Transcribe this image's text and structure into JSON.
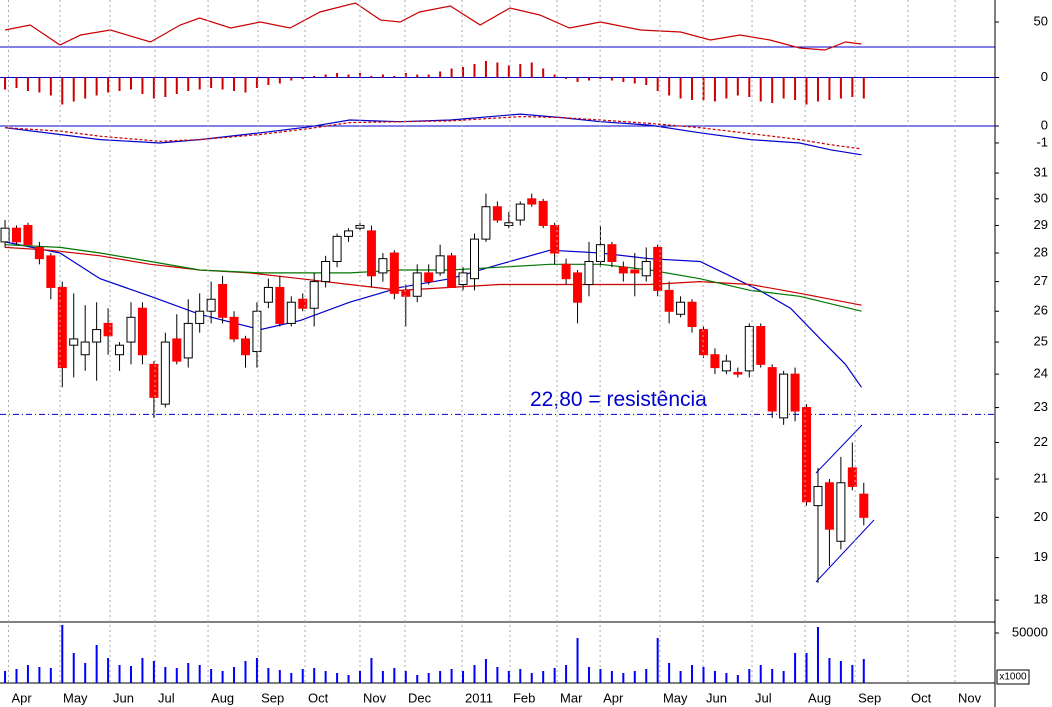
{
  "chart_data": [
    {
      "type": "line",
      "xlim": [
        -0.44,
        86.46
      ],
      "ylim": [
        25,
        72
      ],
      "yticks": [
        50
      ],
      "series": [
        {
          "color": "#cc0000",
          "x": [
            0,
            2.2,
            4.8,
            6.6,
            9.2,
            12.7,
            15.3,
            17.0,
            19.7,
            22.3,
            24.9,
            27.5,
            30.6,
            32.8,
            34.5,
            36.2,
            38.9,
            41.5,
            44.1,
            46.7,
            49.3,
            52.0,
            55.5,
            59.0,
            61.6,
            64.2,
            66.8,
            69.4,
            71.6,
            73.4,
            74.8
          ],
          "values": [
            42,
            47,
            27,
            37,
            42,
            30,
            47,
            54,
            44,
            50,
            44,
            60,
            69,
            52,
            50,
            60,
            66,
            47,
            64,
            57,
            44,
            50,
            42,
            40,
            32,
            37,
            32,
            24,
            22,
            30,
            28
          ]
        }
      ]
    },
    {
      "type": "bar",
      "xlim": [
        -0.44,
        86.46
      ],
      "ylim": [
        -25,
        15
      ],
      "yticks": [
        0
      ],
      "color": "#cc0000",
      "zero_color": "#0000cc",
      "values": [
        -8,
        -7,
        -9,
        -10,
        -12,
        -18,
        -16,
        -14,
        -12,
        -10,
        -9,
        -8,
        -11,
        -14,
        -13,
        -11,
        -9,
        -8,
        -7,
        -8,
        -9,
        -10,
        -7,
        -5,
        -4,
        -2,
        -1,
        1,
        2,
        3,
        2,
        3,
        1,
        2,
        1,
        3,
        2,
        2,
        4,
        6,
        7,
        9,
        11,
        10,
        8,
        9,
        10,
        6,
        2,
        -1,
        -3,
        -2,
        -1,
        -2,
        -3,
        -4,
        -5,
        -9,
        -12,
        -14,
        -15,
        -15,
        -16,
        -14,
        -12,
        -13,
        -16,
        -17,
        -14,
        -15,
        -18,
        -16,
        -15,
        -14,
        -13,
        -14
      ]
    },
    {
      "type": "line",
      "xlim": [
        -0.44,
        86.46
      ],
      "ylim": [
        -2.18,
        0.94
      ],
      "yticks": [
        0,
        -1
      ],
      "zero_color": "#0000cc",
      "series": [
        {
          "color": "#0000cc",
          "style": "solid",
          "x": [
            0,
            4.8,
            8.3,
            13.5,
            17.0,
            22.3,
            26.6,
            30.1,
            34.5,
            38.9,
            45.0,
            48.5,
            52.0,
            56.3,
            60.7,
            65.1,
            69.4,
            72.1,
            74.8
          ],
          "values": [
            -0.1,
            -0.5,
            -0.8,
            -1.0,
            -0.8,
            -0.4,
            -0.05,
            0.35,
            0.25,
            0.35,
            0.7,
            0.5,
            0.25,
            0.05,
            -0.4,
            -0.8,
            -1.0,
            -1.4,
            -1.7
          ]
        },
        {
          "color": "#cc0000",
          "style": "dashed",
          "x": [
            0,
            4.8,
            8.3,
            13.5,
            17.0,
            22.3,
            26.6,
            30.1,
            34.5,
            38.9,
            45.0,
            48.5,
            52.0,
            56.3,
            60.7,
            65.1,
            69.4,
            72.1,
            74.8
          ],
          "values": [
            -0.1,
            -0.3,
            -0.6,
            -0.9,
            -0.8,
            -0.5,
            -0.15,
            0.2,
            0.25,
            0.3,
            0.55,
            0.5,
            0.35,
            0.15,
            -0.1,
            -0.45,
            -0.8,
            -1.1,
            -1.35
          ]
        }
      ]
    },
    {
      "type": "candlestick",
      "xlim": [
        -0.44,
        86.46
      ],
      "ylim": [
        17.55,
        31.4
      ],
      "log_scale": true,
      "yticks": [
        18,
        19,
        20,
        21,
        22,
        23,
        24,
        25,
        26,
        27,
        28,
        29,
        30,
        31
      ],
      "up_color": "#ffffff",
      "down_color": "#ff0000",
      "open": [
        28.4,
        28.9,
        29.0,
        28.2,
        27.9,
        26.8,
        24.9,
        24.6,
        25.0,
        25.6,
        24.6,
        25.0,
        26.1,
        24.3,
        23.1,
        25.1,
        24.5,
        25.6,
        26.0,
        26.9,
        25.8,
        25.1,
        24.7,
        26.3,
        26.8,
        25.6,
        26.4,
        26.1,
        27.0,
        27.7,
        28.6,
        28.9,
        28.8,
        27.3,
        28.0,
        26.7,
        26.5,
        27.3,
        27.3,
        27.9,
        26.9,
        27.1,
        28.5,
        29.7,
        29.0,
        29.2,
        30.0,
        29.9,
        29.0,
        27.6,
        27.3,
        26.9,
        27.7,
        28.3,
        27.5,
        27.4,
        27.2,
        28.2,
        26.7,
        25.9,
        26.3,
        25.4,
        24.6,
        24.1,
        24.05,
        24.1,
        25.5,
        24.2,
        22.7,
        24.0,
        23.0,
        20.3,
        20.9,
        19.4,
        21.3,
        20.6
      ],
      "high": [
        29.2,
        29.0,
        29.1,
        28.4,
        28.0,
        27.0,
        26.6,
        26.2,
        26.3,
        26.1,
        25.0,
        26.3,
        26.3,
        24.4,
        25.3,
        25.9,
        26.4,
        26.6,
        27.0,
        27.2,
        26.0,
        25.2,
        26.3,
        27.1,
        27.2,
        26.5,
        26.6,
        27.3,
        27.9,
        28.7,
        28.9,
        29.1,
        29.0,
        28.0,
        28.1,
        26.9,
        27.6,
        27.6,
        28.3,
        28.0,
        27.5,
        28.7,
        30.2,
        29.9,
        29.5,
        29.9,
        30.2,
        30.0,
        29.1,
        27.8,
        27.4,
        28.4,
        29.0,
        28.4,
        27.7,
        28.0,
        28.2,
        28.3,
        27.0,
        26.5,
        26.4,
        25.5,
        24.8,
        24.6,
        24.2,
        25.6,
        25.6,
        24.3,
        24.1,
        24.2,
        23.1,
        21.3,
        21.0,
        21.6,
        22.0,
        20.9
      ],
      "low": [
        28.2,
        28.3,
        28.3,
        27.6,
        26.4,
        23.6,
        23.9,
        24.1,
        23.8,
        24.6,
        24.1,
        24.3,
        24.3,
        22.7,
        23.0,
        24.3,
        24.2,
        25.3,
        25.6,
        25.6,
        25.0,
        24.2,
        24.2,
        26.1,
        25.5,
        25.5,
        26.0,
        25.5,
        26.8,
        27.5,
        28.4,
        28.8,
        26.8,
        27.0,
        26.4,
        25.5,
        26.3,
        26.9,
        27.2,
        26.8,
        26.7,
        26.7,
        28.4,
        29.1,
        28.9,
        29.0,
        29.7,
        28.9,
        27.6,
        26.9,
        25.6,
        26.5,
        27.5,
        27.5,
        27.0,
        26.5,
        27.0,
        26.5,
        25.6,
        25.8,
        25.3,
        24.5,
        24.0,
        24.0,
        23.9,
        23.9,
        24.2,
        22.7,
        22.5,
        22.6,
        20.3,
        18.4,
        18.8,
        19.2,
        20.7,
        19.8
      ],
      "close": [
        28.9,
        28.4,
        28.3,
        27.8,
        26.8,
        24.2,
        25.1,
        25.0,
        25.4,
        25.2,
        24.9,
        25.8,
        24.6,
        23.3,
        25.0,
        24.4,
        25.6,
        26.0,
        26.4,
        25.8,
        25.1,
        24.6,
        26.0,
        26.8,
        25.6,
        26.3,
        26.1,
        27.0,
        27.7,
        28.6,
        28.8,
        29.0,
        27.2,
        27.8,
        26.6,
        26.5,
        27.3,
        27.0,
        27.9,
        26.8,
        27.3,
        28.5,
        29.7,
        29.2,
        29.1,
        29.8,
        29.8,
        29.0,
        28.0,
        27.1,
        26.3,
        27.7,
        28.3,
        27.7,
        27.3,
        27.3,
        27.7,
        26.7,
        26.0,
        26.3,
        25.5,
        24.6,
        24.2,
        24.4,
        24.0,
        25.5,
        24.3,
        22.9,
        24.0,
        22.9,
        20.4,
        20.8,
        19.7,
        20.9,
        20.8,
        20.0
      ],
      "series": [
        {
          "color": "#0000cc",
          "x": [
            0,
            4.8,
            8.3,
            12.7,
            17.0,
            22.3,
            25.8,
            30.1,
            34.5,
            38.9,
            43.2,
            47.6,
            52.0,
            56.3,
            60.7,
            63.3,
            65.9,
            68.6,
            71.2,
            73.4,
            74.8
          ],
          "values": [
            28.4,
            28.0,
            27.1,
            26.5,
            25.9,
            25.4,
            25.7,
            26.3,
            26.8,
            27.1,
            27.6,
            28.1,
            28.0,
            27.8,
            27.7,
            27.2,
            26.7,
            26.1,
            25.1,
            24.3,
            23.6
          ]
        },
        {
          "color": "#cc0000",
          "x": [
            0,
            3.9,
            8.3,
            12.7,
            17.0,
            21.4,
            25.8,
            30.1,
            34.5,
            38.9,
            43.2,
            47.6,
            52.0,
            56.3,
            60.7,
            65.1,
            69.4,
            74.8
          ],
          "values": [
            28.2,
            28.1,
            27.9,
            27.6,
            27.4,
            27.3,
            27.1,
            26.9,
            26.7,
            26.8,
            26.9,
            26.9,
            26.9,
            26.9,
            27.0,
            26.9,
            26.6,
            26.2
          ]
        },
        {
          "color": "#007700",
          "x": [
            0,
            4.8,
            8.3,
            12.7,
            17.0,
            22.3,
            25.8,
            30.1,
            34.5,
            38.9,
            43.2,
            47.6,
            52.0,
            56.3,
            60.7,
            65.1,
            69.4,
            74.8
          ],
          "values": [
            28.3,
            28.2,
            28.0,
            27.7,
            27.4,
            27.3,
            27.3,
            27.3,
            27.4,
            27.4,
            27.5,
            27.6,
            27.6,
            27.4,
            27.1,
            26.7,
            26.5,
            26.0
          ]
        }
      ],
      "reference_lines": [
        {
          "value": 22.8,
          "label": "22,80 = resistência",
          "color": "#0000cc"
        }
      ]
    },
    {
      "type": "bar",
      "xlim": [
        -0.44,
        86.46
      ],
      "ylim": [
        0,
        60000
      ],
      "yticks": [
        50000
      ],
      "color": "#0000ff",
      "unit_label": "x1000",
      "values": [
        12000,
        14000,
        18000,
        16000,
        15000,
        58000,
        30000,
        20000,
        38000,
        25000,
        18000,
        17000,
        25000,
        22000,
        16000,
        15000,
        20000,
        18000,
        14000,
        12000,
        16000,
        22000,
        25000,
        15000,
        13000,
        10000,
        14000,
        15000,
        12000,
        10000,
        8000,
        12000,
        25000,
        12000,
        15000,
        12000,
        8000,
        10000,
        12000,
        14000,
        12000,
        18000,
        24000,
        16000,
        12000,
        14000,
        10000,
        12000,
        15000,
        18000,
        45000,
        16000,
        14000,
        12000,
        10000,
        12000,
        14000,
        45000,
        20000,
        12000,
        18000,
        16000,
        12000,
        10000,
        8000,
        14000,
        18000,
        14000,
        12000,
        30000,
        30000,
        56000,
        25000,
        22000,
        18000,
        24000
      ],
      "xticks": [
        {
          "value": 0.3,
          "label": "Apr"
        },
        {
          "value": 4.8,
          "label": "May"
        },
        {
          "value": 9.17,
          "label": "Jun"
        },
        {
          "value": 13.1,
          "label": "Jul"
        },
        {
          "value": 17.73,
          "label": "Aug"
        },
        {
          "value": 22.1,
          "label": "Sep"
        },
        {
          "value": 26.2,
          "label": "Oct"
        },
        {
          "value": 31.0,
          "label": "Nov"
        },
        {
          "value": 34.93,
          "label": "Dec"
        },
        {
          "value": 39.91,
          "label": "2011"
        },
        {
          "value": 44.1,
          "label": "Feb"
        },
        {
          "value": 48.21,
          "label": "Mar"
        },
        {
          "value": 51.97,
          "label": "Apr"
        },
        {
          "value": 57.2,
          "label": "May"
        },
        {
          "value": 60.96,
          "label": "Jun"
        },
        {
          "value": 65.24,
          "label": "Jul"
        },
        {
          "value": 69.87,
          "label": "Aug"
        },
        {
          "value": 74.24,
          "label": "Sep"
        },
        {
          "value": 78.86,
          "label": "Oct"
        },
        {
          "value": 82.97,
          "label": "Nov"
        }
      ]
    }
  ]
}
